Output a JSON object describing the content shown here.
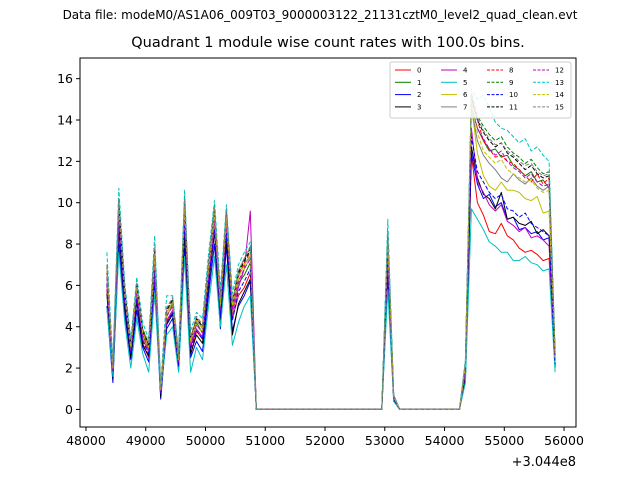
{
  "figure": {
    "suptitle": "Data file: modeM0/AS1A06_009T03_9000003122_21131cztM0_level2_quad_clean.evt"
  },
  "chart_data": {
    "type": "line",
    "title": "Quadrant 1 module wise count rates with 100.0s bins.",
    "xlabel": "",
    "ylabel": "",
    "x_offset_label": "+3.044e8",
    "xlim": [
      47900,
      56200
    ],
    "ylim": [
      -0.85,
      17
    ],
    "xticks": [
      48000,
      49000,
      50000,
      51000,
      52000,
      53000,
      54000,
      55000,
      56000
    ],
    "yticks": [
      0,
      2,
      4,
      6,
      8,
      10,
      12,
      14,
      16
    ],
    "grid": false,
    "legend_position": "top-right",
    "legend_columns": 4,
    "x": [
      48350,
      48450,
      48550,
      48650,
      48750,
      48850,
      48950,
      49050,
      49150,
      49250,
      49350,
      49450,
      49550,
      49650,
      49750,
      49850,
      49950,
      50050,
      50150,
      50250,
      50350,
      50450,
      50550,
      50650,
      50750,
      50850,
      52950,
      53050,
      53150,
      53250,
      54250,
      54350,
      54450,
      54550,
      54650,
      54750,
      54850,
      54950,
      55050,
      55150,
      55250,
      55350,
      55450,
      55550,
      55650,
      55750,
      55850
    ],
    "series": [
      {
        "name": "0",
        "color": "#ff0000",
        "dash": "solid",
        "values": [
          5.8,
          1.7,
          8.8,
          5.0,
          2.6,
          5.4,
          3.2,
          2.5,
          6.6,
          0.7,
          4.2,
          4.7,
          2.1,
          8.8,
          2.6,
          3.8,
          3.4,
          6.0,
          8.6,
          4.6,
          8.3,
          4.4,
          5.5,
          5.9,
          6.6,
          0,
          0,
          6.8,
          0.5,
          0,
          0,
          1.6,
          12.3,
          10.0,
          9.4,
          8.6,
          8.5,
          9.0,
          8.4,
          8.2,
          7.8,
          7.6,
          7.7,
          7.5,
          7.2,
          7.3,
          2.2
        ]
      },
      {
        "name": "1",
        "color": "#008000",
        "dash": "solid",
        "values": [
          6.8,
          1.9,
          9.6,
          5.4,
          2.7,
          5.9,
          3.6,
          2.9,
          6.9,
          0.9,
          4.5,
          5.1,
          2.4,
          9.9,
          3.0,
          4.2,
          3.7,
          6.6,
          9.4,
          5.0,
          8.9,
          4.8,
          6.1,
          6.5,
          7.1,
          0,
          0,
          8.4,
          0.6,
          0,
          0,
          2.0,
          14.6,
          13.6,
          13.0,
          12.5,
          12.6,
          12.2,
          12.3,
          11.8,
          11.6,
          11.3,
          11.5,
          11.0,
          11.1,
          10.7,
          2.5
        ]
      },
      {
        "name": "2",
        "color": "#0000ff",
        "dash": "solid",
        "values": [
          5.0,
          1.3,
          8.0,
          4.6,
          2.4,
          4.8,
          3.0,
          2.3,
          6.2,
          0.5,
          3.9,
          4.4,
          1.9,
          7.8,
          2.5,
          3.3,
          2.8,
          5.5,
          8.0,
          3.9,
          7.9,
          3.8,
          5.0,
          5.5,
          6.2,
          0,
          0,
          6.3,
          0.4,
          0,
          0,
          1.5,
          12.4,
          10.9,
          10.2,
          10.4,
          9.8,
          10.0,
          9.2,
          9.3,
          8.7,
          8.8,
          8.5,
          8.6,
          8.2,
          8.3,
          2.0
        ]
      },
      {
        "name": "3",
        "color": "#000000",
        "dash": "solid",
        "values": [
          5.6,
          1.5,
          8.7,
          4.9,
          2.5,
          5.2,
          3.1,
          2.6,
          7.3,
          0.6,
          4.1,
          4.6,
          2.0,
          8.5,
          2.7,
          3.6,
          3.2,
          5.9,
          8.6,
          4.2,
          8.2,
          3.6,
          5.1,
          5.7,
          6.3,
          0,
          0,
          7.0,
          0.5,
          0,
          0,
          1.6,
          12.7,
          11.2,
          10.4,
          10.2,
          9.7,
          10.5,
          9.2,
          9.3,
          9.0,
          8.9,
          9.1,
          8.5,
          8.7,
          8.4,
          2.1
        ]
      },
      {
        "name": "4",
        "color": "#bf00bf",
        "dash": "solid",
        "values": [
          6.0,
          1.8,
          9.1,
          5.2,
          2.8,
          5.5,
          3.4,
          2.8,
          6.6,
          0.8,
          4.3,
          4.8,
          2.2,
          9.2,
          3.0,
          3.9,
          3.5,
          6.2,
          8.8,
          4.7,
          8.7,
          4.6,
          5.9,
          6.8,
          9.6,
          0,
          0,
          7.2,
          0.5,
          0,
          0,
          1.8,
          13.6,
          11.0,
          10.5,
          9.9,
          9.6,
          9.9,
          9.1,
          8.9,
          8.6,
          8.8,
          8.3,
          8.4,
          8.2,
          7.9,
          2.2
        ]
      },
      {
        "name": "5",
        "color": "#00bfbf",
        "dash": "solid",
        "values": [
          4.9,
          1.6,
          7.6,
          4.2,
          2.0,
          4.4,
          2.7,
          1.8,
          5.6,
          0.8,
          3.6,
          4.0,
          1.8,
          7.4,
          1.8,
          3.0,
          2.4,
          5.0,
          7.4,
          4.0,
          7.0,
          3.1,
          4.2,
          5.0,
          5.5,
          0,
          0,
          5.8,
          0.4,
          0,
          0,
          1.3,
          9.7,
          9.2,
          8.7,
          8.1,
          7.9,
          7.6,
          7.6,
          7.2,
          7.2,
          7.4,
          7.1,
          7.0,
          6.7,
          6.8,
          1.8
        ]
      },
      {
        "name": "6",
        "color": "#bfbf00",
        "dash": "solid",
        "values": [
          6.3,
          2.0,
          9.5,
          5.4,
          2.9,
          5.8,
          3.5,
          2.9,
          7.0,
          0.9,
          4.6,
          5.0,
          2.3,
          9.6,
          3.2,
          4.1,
          3.7,
          6.5,
          9.1,
          4.9,
          9.1,
          4.7,
          6.2,
          6.8,
          7.3,
          0,
          0,
          7.8,
          0.6,
          0,
          0,
          2.0,
          14.7,
          12.4,
          11.3,
          10.8,
          10.6,
          11.0,
          10.6,
          10.6,
          10.5,
          10.2,
          10.1,
          10.3,
          9.5,
          9.6,
          2.3
        ]
      },
      {
        "name": "7",
        "color": "#808080",
        "dash": "solid",
        "values": [
          6.6,
          1.9,
          9.4,
          5.5,
          3.0,
          5.7,
          3.7,
          3.0,
          7.3,
          0.9,
          4.7,
          5.2,
          2.4,
          9.7,
          3.3,
          4.3,
          3.9,
          6.8,
          9.3,
          5.1,
          9.2,
          4.9,
          6.4,
          7.0,
          7.4,
          0,
          0,
          8.0,
          0.6,
          0,
          0,
          2.1,
          14.6,
          13.0,
          12.3,
          11.9,
          11.6,
          11.2,
          11.0,
          11.4,
          11.1,
          10.9,
          11.2,
          10.8,
          10.6,
          10.8,
          2.4
        ]
      },
      {
        "name": "8",
        "color": "#ff0000",
        "dash": "dashed",
        "values": [
          6.7,
          2.0,
          9.9,
          5.6,
          3.1,
          6.0,
          3.8,
          3.1,
          7.6,
          1.0,
          4.8,
          5.3,
          2.5,
          10.0,
          3.4,
          4.4,
          4.0,
          6.9,
          9.6,
          5.2,
          9.4,
          5.0,
          6.5,
          7.1,
          7.6,
          0,
          0,
          8.2,
          0.6,
          0,
          0,
          2.2,
          15.0,
          14.0,
          13.0,
          12.6,
          12.2,
          12.3,
          12.0,
          11.9,
          11.6,
          11.3,
          11.0,
          11.4,
          10.9,
          11.2,
          2.6
        ]
      },
      {
        "name": "9",
        "color": "#008000",
        "dash": "dashed",
        "values": [
          7.0,
          2.1,
          10.2,
          5.8,
          3.2,
          6.1,
          3.9,
          3.2,
          7.8,
          1.0,
          4.9,
          5.4,
          2.6,
          10.3,
          3.5,
          4.5,
          4.1,
          7.1,
          9.9,
          5.4,
          9.7,
          5.2,
          6.7,
          7.3,
          7.8,
          0,
          0,
          8.6,
          0.7,
          0,
          0,
          2.3,
          15.3,
          14.2,
          13.7,
          13.3,
          13.0,
          13.2,
          12.7,
          12.4,
          12.2,
          11.9,
          12.1,
          11.7,
          11.4,
          11.5,
          2.7
        ]
      },
      {
        "name": "10",
        "color": "#0000ff",
        "dash": "dashed",
        "values": [
          6.1,
          1.8,
          9.0,
          5.1,
          2.7,
          5.4,
          3.3,
          2.7,
          6.8,
          0.8,
          4.2,
          4.7,
          2.1,
          9.0,
          2.9,
          3.8,
          3.4,
          6.2,
          8.7,
          4.5,
          8.5,
          4.3,
          5.7,
          6.2,
          6.8,
          0,
          0,
          7.4,
          0.5,
          0,
          0,
          1.9,
          13.2,
          11.5,
          11.0,
          10.5,
          10.2,
          10.4,
          9.7,
          9.6,
          9.3,
          9.5,
          9.0,
          8.8,
          8.6,
          8.4,
          2.2
        ]
      },
      {
        "name": "11",
        "color": "#000000",
        "dash": "dashed",
        "values": [
          6.9,
          2.0,
          10.0,
          5.7,
          3.1,
          6.0,
          3.8,
          3.1,
          7.7,
          1.0,
          4.8,
          5.3,
          2.5,
          10.1,
          3.4,
          4.4,
          4.0,
          7.0,
          9.7,
          5.3,
          9.5,
          5.1,
          6.6,
          7.2,
          7.7,
          0,
          0,
          8.4,
          0.6,
          0,
          0,
          2.2,
          15.1,
          14.0,
          13.4,
          13.0,
          12.7,
          12.9,
          12.4,
          12.2,
          11.9,
          11.6,
          11.8,
          11.4,
          11.2,
          11.3,
          2.6
        ]
      },
      {
        "name": "12",
        "color": "#bf00bf",
        "dash": "dashed",
        "values": [
          6.4,
          1.9,
          9.6,
          5.4,
          2.9,
          5.7,
          3.6,
          2.9,
          7.2,
          0.9,
          4.5,
          5.0,
          2.3,
          9.5,
          3.1,
          4.1,
          3.7,
          6.5,
          9.2,
          4.9,
          9.1,
          4.8,
          6.2,
          6.8,
          7.3,
          0,
          0,
          7.9,
          0.6,
          0,
          0,
          2.1,
          14.8,
          13.6,
          13.1,
          12.6,
          12.3,
          12.5,
          12.0,
          11.7,
          11.5,
          11.2,
          11.4,
          11.0,
          10.8,
          10.9,
          2.5
        ]
      },
      {
        "name": "13",
        "color": "#00bfbf",
        "dash": "dashed",
        "values": [
          7.6,
          2.3,
          10.7,
          6.1,
          3.4,
          6.4,
          4.2,
          3.4,
          8.4,
          1.2,
          5.5,
          5.5,
          2.8,
          10.6,
          3.8,
          4.7,
          4.4,
          7.5,
          10.1,
          5.8,
          9.9,
          5.6,
          7.0,
          7.6,
          8.1,
          0,
          0,
          9.2,
          0.7,
          0,
          0,
          2.4,
          15.5,
          15.0,
          15.2,
          14.6,
          13.9,
          13.6,
          13.5,
          13.2,
          12.9,
          13.1,
          12.5,
          12.7,
          12.3,
          12.0,
          2.8
        ]
      },
      {
        "name": "14",
        "color": "#bfbf00",
        "dash": "dashed",
        "values": [
          6.8,
          2.0,
          9.8,
          5.6,
          3.0,
          5.9,
          3.7,
          3.0,
          7.4,
          0.9,
          4.7,
          5.2,
          2.4,
          9.8,
          3.3,
          4.3,
          3.9,
          6.8,
          9.5,
          5.1,
          9.3,
          5.0,
          6.4,
          7.0,
          7.5,
          0,
          0,
          8.1,
          0.6,
          0,
          0,
          2.1,
          14.9,
          13.4,
          12.5,
          12.2,
          11.9,
          12.1,
          11.6,
          11.4,
          11.2,
          11.0,
          11.1,
          10.7,
          10.5,
          10.6,
          2.5
        ]
      },
      {
        "name": "15",
        "color": "#808080",
        "dash": "dashed",
        "values": [
          7.0,
          2.1,
          10.1,
          5.8,
          3.2,
          6.1,
          3.9,
          3.2,
          7.9,
          1.0,
          4.9,
          5.4,
          2.5,
          10.2,
          3.5,
          4.5,
          4.1,
          7.1,
          9.8,
          5.4,
          9.6,
          5.2,
          6.7,
          7.3,
          7.9,
          0,
          0,
          8.5,
          0.7,
          0,
          0,
          2.3,
          15.2,
          14.1,
          13.5,
          13.1,
          12.8,
          12.9,
          12.5,
          12.3,
          12.0,
          11.8,
          11.9,
          11.5,
          11.3,
          11.4,
          2.7
        ]
      }
    ]
  }
}
